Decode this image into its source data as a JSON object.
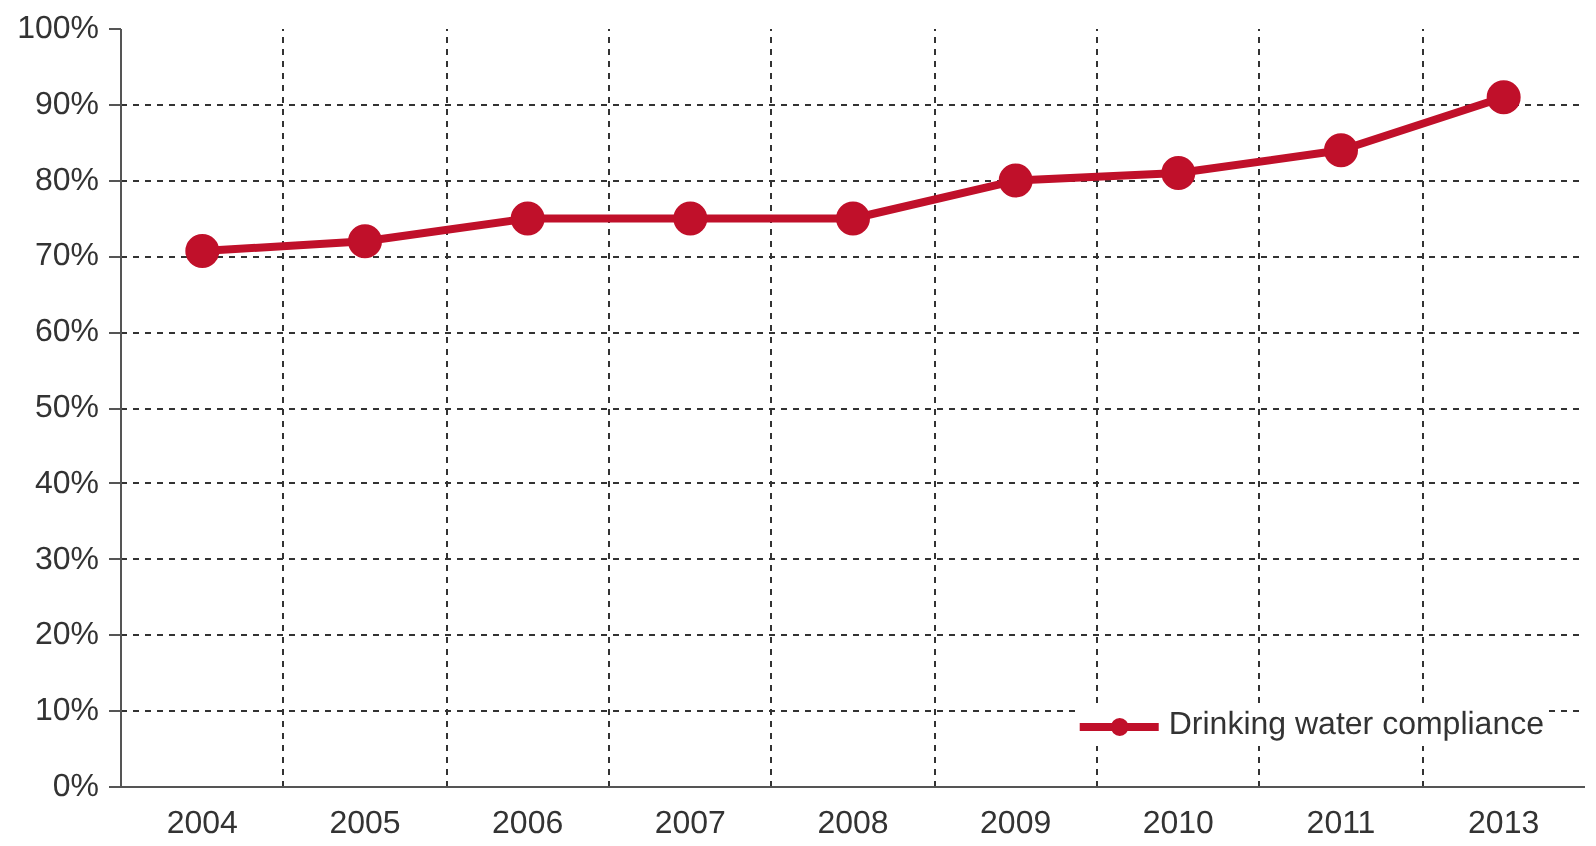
{
  "chart_data": {
    "type": "line",
    "categories": [
      "2004",
      "2005",
      "2006",
      "2007",
      "2008",
      "2009",
      "2010",
      "2011",
      "2013"
    ],
    "series": [
      {
        "name": "Drinking water compliance",
        "color": "#c0102a",
        "values": [
          70.7,
          72,
          75,
          75,
          75,
          80,
          81,
          84,
          91
        ]
      }
    ],
    "ylim": [
      0,
      100
    ],
    "yticks": [
      {
        "value": 0,
        "label": "0%"
      },
      {
        "value": 10,
        "label": "10%"
      },
      {
        "value": 20,
        "label": "20%"
      },
      {
        "value": 30,
        "label": "30%"
      },
      {
        "value": 40,
        "label": "40%"
      },
      {
        "value": 50,
        "label": "50%"
      },
      {
        "value": 60,
        "label": "60%"
      },
      {
        "value": 70,
        "label": "70%"
      },
      {
        "value": 80,
        "label": "80%"
      },
      {
        "value": 90,
        "label": "90%"
      },
      {
        "value": 100,
        "label": "100%"
      }
    ],
    "grid": true,
    "legend": "bottom right",
    "marker": "circle",
    "line_style": "solid"
  }
}
